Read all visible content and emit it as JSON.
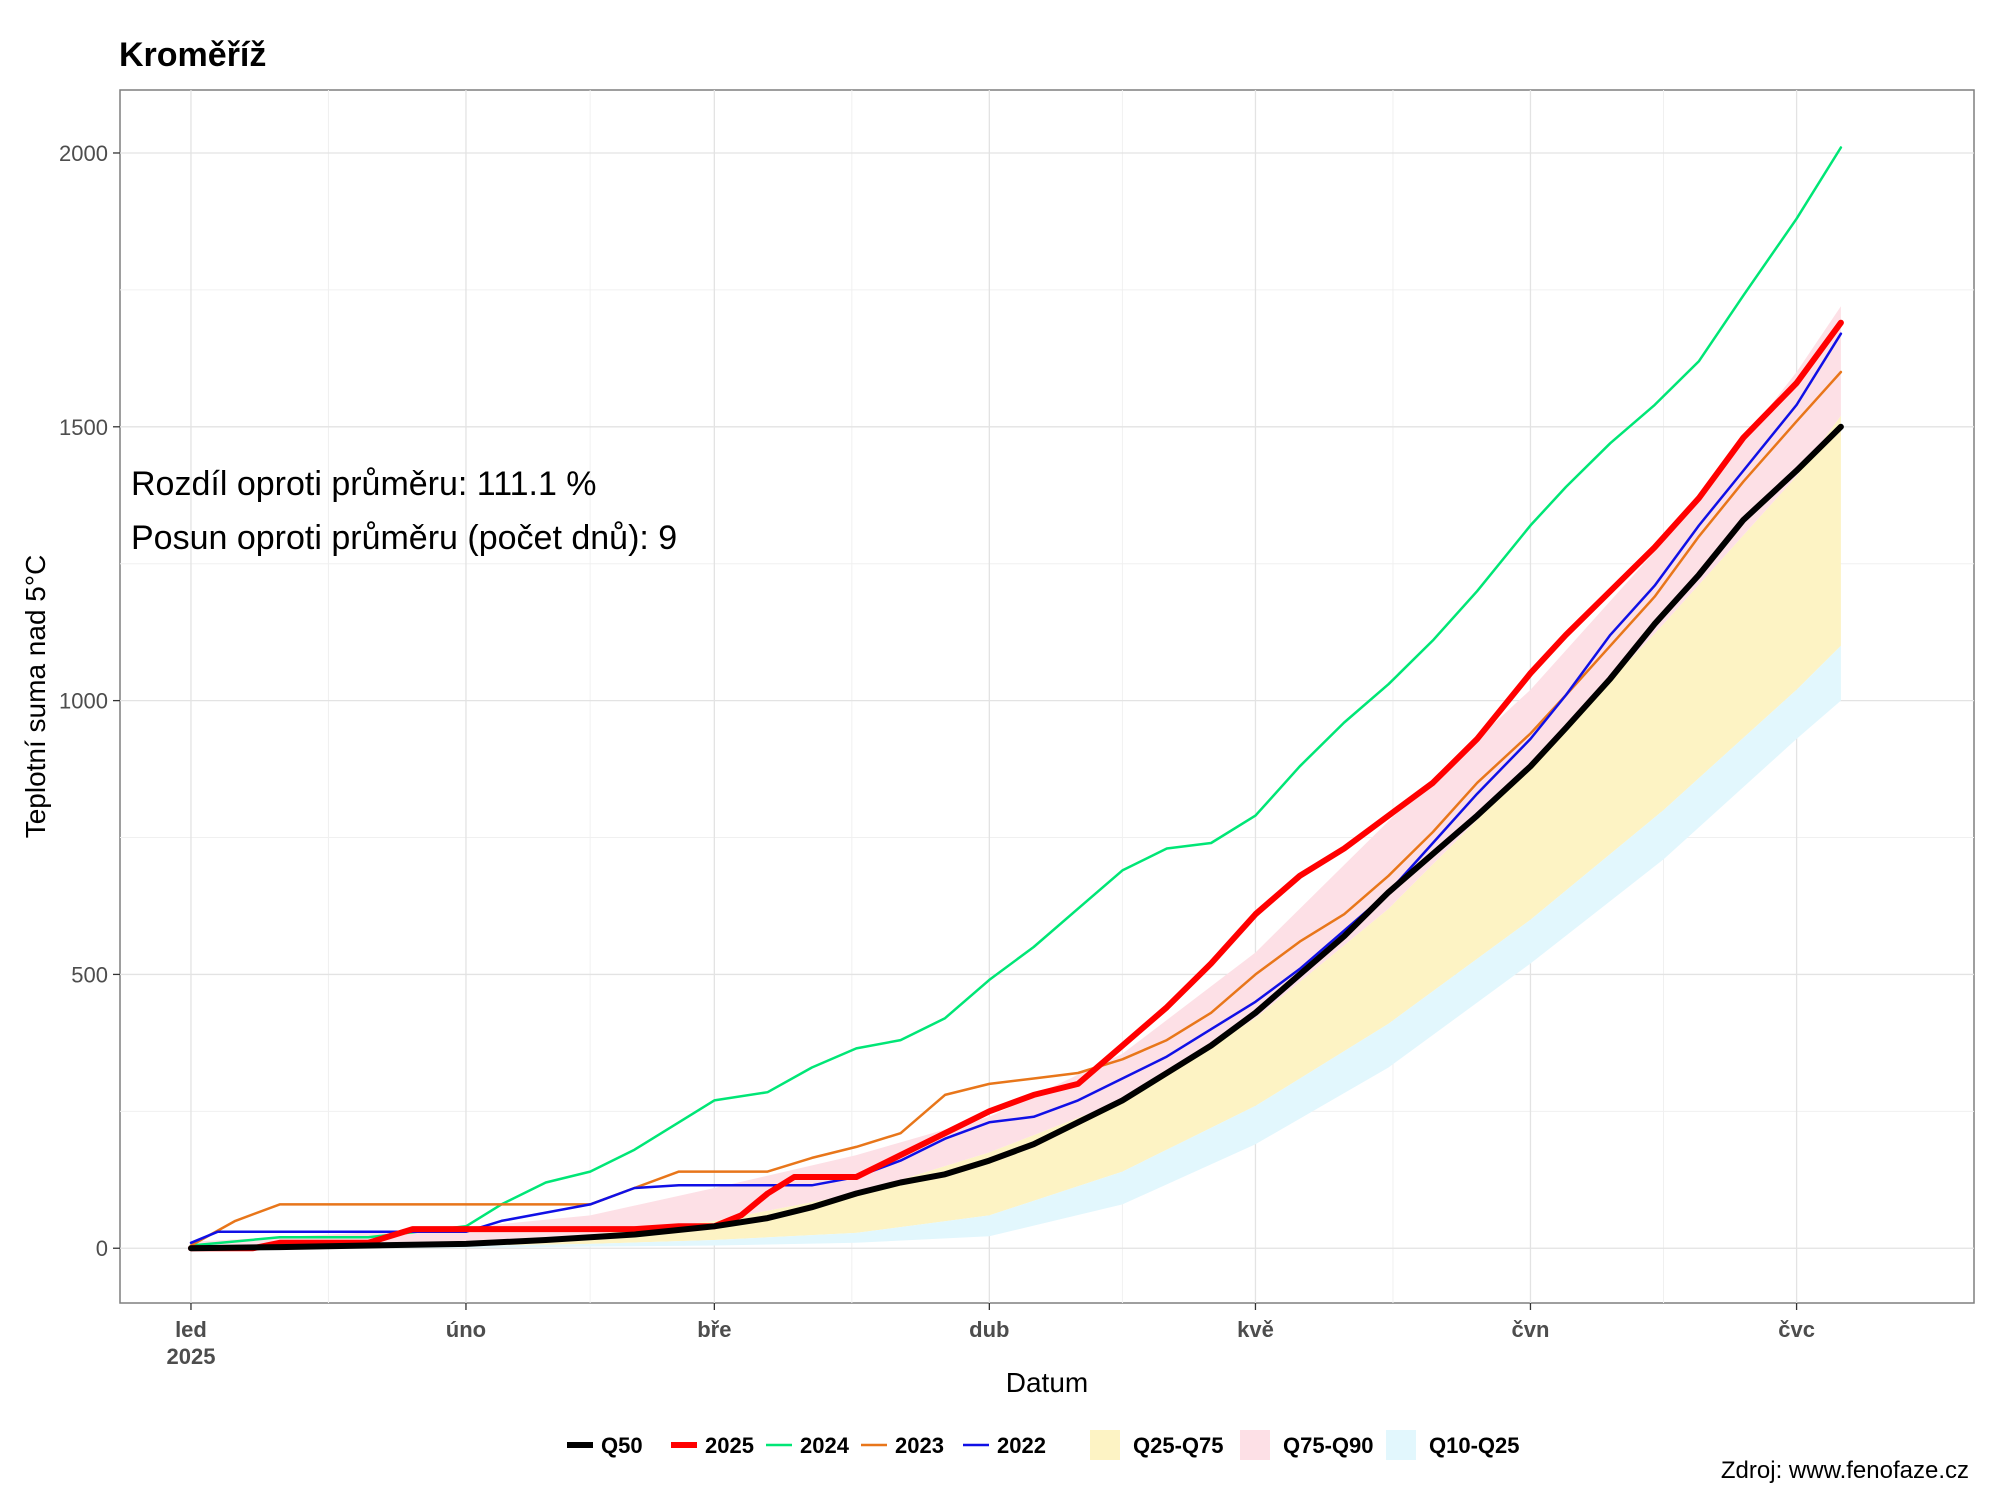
{
  "title": "Kroměříž",
  "source": "Zdroj: www.fenofaze.cz",
  "chart_data": {
    "type": "line",
    "title": "Kroměříž",
    "xlabel": "Datum",
    "ylabel": "Teplotní suma nad 5°C",
    "ylim": [
      -100,
      2115
    ],
    "xlim": [
      -8,
      201
    ],
    "yticks": [
      0,
      500,
      1000,
      1500,
      2000
    ],
    "ytick_labels": [
      "0",
      "500",
      "1000",
      "1500",
      "2000"
    ],
    "xticks": [
      {
        "day": 0,
        "label": "led",
        "sublabel": "2025"
      },
      {
        "day": 31,
        "label": "úno"
      },
      {
        "day": 59,
        "label": "bře"
      },
      {
        "day": 90,
        "label": "dub"
      },
      {
        "day": 120,
        "label": "kvě"
      },
      {
        "day": 151,
        "label": "čvn"
      },
      {
        "day": 181,
        "label": "čvc"
      }
    ],
    "grid": true,
    "legend_position": "bottom",
    "annotations": [
      "Rozdíl oproti průměru: 111.1 %",
      "Posun oproti průměru (počet dnů): 9"
    ],
    "x_unit": "day of year 2025",
    "bands": [
      {
        "name": "Q25-Q75",
        "color": "#fdf3c4",
        "x": [
          0,
          31,
          45,
          59,
          75,
          90,
          105,
          120,
          135,
          151,
          166,
          181,
          186
        ],
        "lower": [
          0,
          4,
          8,
          15,
          28,
          60,
          140,
          260,
          410,
          600,
          800,
          1020,
          1100
        ],
        "upper": [
          2,
          12,
          25,
          50,
          100,
          175,
          270,
          420,
          620,
          880,
          1140,
          1410,
          1520
        ]
      },
      {
        "name": "Q75-Q90",
        "color": "#fde0e6",
        "x": [
          0,
          31,
          45,
          59,
          75,
          90,
          105,
          120,
          135,
          151,
          166,
          181,
          186
        ],
        "lower": [
          2,
          12,
          25,
          50,
          100,
          175,
          270,
          420,
          620,
          880,
          1140,
          1410,
          1520
        ],
        "upper": [
          12,
          38,
          60,
          110,
          170,
          240,
          355,
          540,
          780,
          1020,
          1290,
          1600,
          1720
        ]
      },
      {
        "name": "Q10-Q25",
        "color": "#e2f7fd",
        "x": [
          0,
          31,
          45,
          59,
          75,
          90,
          105,
          120,
          135,
          151,
          166,
          181,
          186
        ],
        "lower": [
          0,
          1,
          3,
          5,
          10,
          22,
          80,
          190,
          330,
          520,
          710,
          930,
          1000
        ],
        "upper": [
          0,
          4,
          8,
          15,
          28,
          60,
          140,
          260,
          410,
          600,
          800,
          1020,
          1100
        ]
      }
    ],
    "series": [
      {
        "name": "2024",
        "color": "#00e676",
        "width": 2.5,
        "x": [
          0,
          10,
          20,
          31,
          35,
          40,
          45,
          50,
          55,
          59,
          65,
          70,
          75,
          80,
          85,
          90,
          95,
          100,
          105,
          110,
          115,
          120,
          125,
          130,
          135,
          140,
          145,
          151,
          155,
          160,
          165,
          170,
          175,
          181,
          186
        ],
        "y": [
          5,
          20,
          20,
          40,
          80,
          120,
          140,
          180,
          230,
          270,
          285,
          330,
          365,
          380,
          420,
          490,
          550,
          620,
          690,
          730,
          740,
          790,
          880,
          960,
          1030,
          1110,
          1200,
          1320,
          1390,
          1470,
          1540,
          1620,
          1740,
          1880,
          2010
        ]
      },
      {
        "name": "2023",
        "color": "#e8761a",
        "width": 2.5,
        "x": [
          0,
          5,
          10,
          31,
          45,
          50,
          55,
          59,
          65,
          70,
          75,
          80,
          85,
          90,
          95,
          100,
          105,
          110,
          115,
          120,
          125,
          130,
          135,
          140,
          145,
          151,
          155,
          160,
          165,
          170,
          175,
          181,
          186
        ],
        "y": [
          5,
          50,
          80,
          80,
          80,
          110,
          140,
          140,
          140,
          165,
          185,
          210,
          280,
          300,
          310,
          320,
          345,
          380,
          430,
          500,
          560,
          610,
          680,
          760,
          850,
          940,
          1010,
          1100,
          1190,
          1300,
          1400,
          1510,
          1600
        ]
      },
      {
        "name": "2022",
        "color": "#1010e6",
        "width": 2.5,
        "x": [
          0,
          3,
          10,
          31,
          35,
          40,
          45,
          50,
          55,
          59,
          65,
          70,
          75,
          80,
          85,
          90,
          95,
          100,
          105,
          110,
          115,
          120,
          125,
          130,
          135,
          140,
          145,
          151,
          155,
          160,
          165,
          170,
          175,
          181,
          186
        ],
        "y": [
          10,
          30,
          30,
          30,
          50,
          65,
          80,
          110,
          115,
          115,
          115,
          115,
          130,
          160,
          200,
          230,
          240,
          270,
          310,
          350,
          400,
          450,
          510,
          580,
          650,
          740,
          830,
          930,
          1010,
          1120,
          1210,
          1320,
          1420,
          1540,
          1670
        ]
      },
      {
        "name": "2025",
        "color": "#ff0000",
        "width": 6,
        "x": [
          0,
          7,
          10,
          20,
          25,
          31,
          40,
          50,
          55,
          59,
          62,
          65,
          68,
          70,
          75,
          80,
          85,
          90,
          95,
          100,
          105,
          110,
          115,
          120,
          125,
          130,
          135,
          140,
          145,
          151,
          155,
          160,
          165,
          170,
          175,
          181,
          186
        ],
        "y": [
          0,
          0,
          10,
          10,
          35,
          35,
          35,
          35,
          40,
          40,
          60,
          100,
          130,
          130,
          130,
          170,
          210,
          250,
          280,
          300,
          370,
          440,
          520,
          610,
          680,
          730,
          790,
          850,
          930,
          1050,
          1120,
          1200,
          1280,
          1370,
          1480,
          1580,
          1690
        ]
      },
      {
        "name": "Q50",
        "color": "#000000",
        "width": 6,
        "x": [
          0,
          10,
          20,
          31,
          40,
          50,
          59,
          65,
          70,
          75,
          80,
          85,
          90,
          95,
          100,
          105,
          110,
          115,
          120,
          125,
          130,
          135,
          140,
          145,
          151,
          155,
          160,
          165,
          170,
          175,
          181,
          186
        ],
        "y": [
          0,
          2,
          5,
          8,
          15,
          25,
          40,
          55,
          75,
          100,
          120,
          135,
          160,
          190,
          230,
          270,
          320,
          370,
          430,
          500,
          570,
          650,
          720,
          790,
          880,
          950,
          1040,
          1140,
          1230,
          1330,
          1420,
          1500
        ]
      }
    ],
    "legend": [
      {
        "name": "Q50",
        "kind": "line",
        "color": "#000000",
        "width": 6
      },
      {
        "name": "2025",
        "kind": "line",
        "color": "#ff0000",
        "width": 6
      },
      {
        "name": "2024",
        "kind": "line",
        "color": "#00e676",
        "width": 2.5
      },
      {
        "name": "2023",
        "kind": "line",
        "color": "#e8761a",
        "width": 2.5
      },
      {
        "name": "2022",
        "kind": "line",
        "color": "#1010e6",
        "width": 2.5
      },
      {
        "name": "Q25-Q75",
        "kind": "band",
        "color": "#fdf3c4"
      },
      {
        "name": "Q75-Q90",
        "kind": "band",
        "color": "#fde0e6"
      },
      {
        "name": "Q10-Q25",
        "kind": "band",
        "color": "#e2f7fd"
      }
    ]
  }
}
